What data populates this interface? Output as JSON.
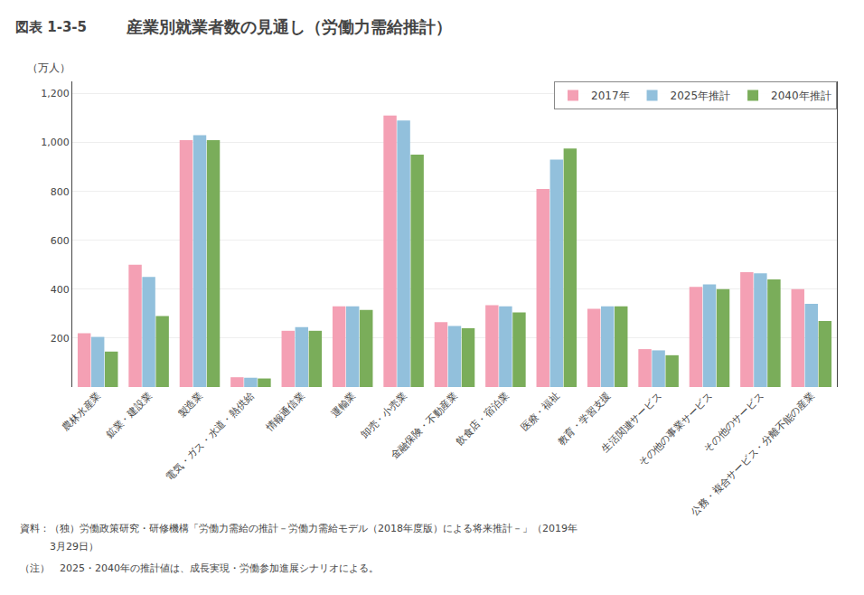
{
  "chart_data": {
    "type": "bar",
    "title": "産業別就業者数の見通し（労働力需給推計）",
    "ylabel": "（万人）",
    "categories": [
      "農林水産業",
      "鉱業・建設業",
      "製造業",
      "電気・ガス・水道・熱供給",
      "情報通信業",
      "運輸業",
      "卸売・小売業",
      "金融保険・不動産業",
      "飲食店・宿泊業",
      "医療・福祉",
      "教育・学習支援",
      "生活関連サービス",
      "その他の事業サービス",
      "その他のサービス",
      "公務・複合サービス・分離不能の産業"
    ],
    "series": [
      {
        "name": "2017年",
        "color": "#F4A0B4",
        "values": [
          220,
          500,
          1010,
          40,
          230,
          330,
          1110,
          265,
          335,
          810,
          320,
          155,
          410,
          470,
          400
        ]
      },
      {
        "name": "2025年推計",
        "color": "#92C0DC",
        "values": [
          205,
          450,
          1030,
          38,
          245,
          330,
          1090,
          250,
          330,
          930,
          330,
          150,
          420,
          465,
          340
        ]
      },
      {
        "name": "2040年推計",
        "color": "#7AAD5A",
        "values": [
          145,
          290,
          1010,
          35,
          230,
          315,
          950,
          240,
          305,
          975,
          330,
          130,
          400,
          440,
          270
        ]
      }
    ],
    "ylim": [
      0,
      1250
    ],
    "yticks": [
      200,
      400,
      600,
      800,
      {
        "value": 1000,
        "label": "1,000"
      },
      {
        "value": 1200,
        "label": "1,200"
      }
    ],
    "grid": true,
    "legend": "upper right",
    "annotations": [
      "図表 1-3-5",
      "資料：（独）労働政策研究・研修機構「労働力需給の推計－労働力需給モデル（2018年度版）による将来推計－」（2019年",
      "　　　3月29日）",
      "（注）　2025・2040年の推計値は、成長実現・労働参加進展シナリオによる。"
    ]
  }
}
